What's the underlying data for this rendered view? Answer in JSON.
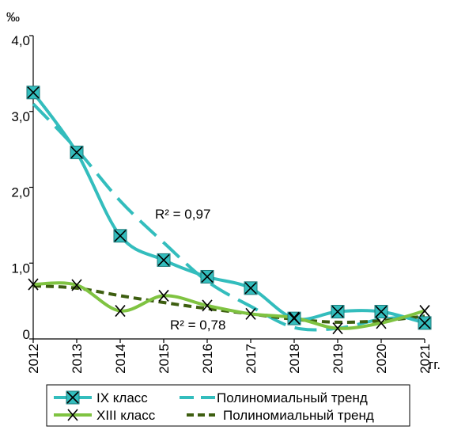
{
  "chart_data": {
    "type": "line",
    "y_unit": "‰",
    "x_unit": "гг.",
    "categories": [
      "2012",
      "2013",
      "2014",
      "2015",
      "2016",
      "2017",
      "2018",
      "2019",
      "2020",
      "2021"
    ],
    "ylim": [
      0,
      4.0
    ],
    "yticks": [
      0,
      1.0,
      2.0,
      3.0,
      4.0
    ],
    "ytick_labels": [
      "0",
      "1,0",
      "2,0",
      "3,0",
      "4,0"
    ],
    "grid": false,
    "legend_position": "bottom",
    "series": [
      {
        "name": "IX класс",
        "values": [
          3.25,
          2.46,
          1.36,
          1.04,
          0.82,
          0.67,
          0.27,
          0.36,
          0.36,
          0.21
        ],
        "color": "#33bdbd",
        "marker": "boxed-x"
      },
      {
        "name": "XIII класс",
        "values": [
          0.72,
          0.71,
          0.37,
          0.57,
          0.44,
          0.33,
          0.28,
          0.14,
          0.21,
          0.37
        ],
        "color": "#7fc341",
        "marker": "x"
      }
    ],
    "trends": [
      {
        "name": "Полиномиальный тренд",
        "for": "IX класс",
        "values": [
          3.1,
          2.5,
          1.82,
          1.27,
          0.76,
          0.43,
          0.15,
          0.14,
          0.26,
          0.3
        ],
        "color": "#33bdbd",
        "style": "long-dash",
        "r2_label": "R² = 0,97"
      },
      {
        "name": "Полиномиальный тренд",
        "for": "XIII класс",
        "values": [
          0.7,
          0.67,
          0.57,
          0.48,
          0.4,
          0.33,
          0.26,
          0.22,
          0.24,
          0.3
        ],
        "color": "#3d5e10",
        "style": "short-dash",
        "r2_label": "R² = 0,78"
      }
    ]
  }
}
